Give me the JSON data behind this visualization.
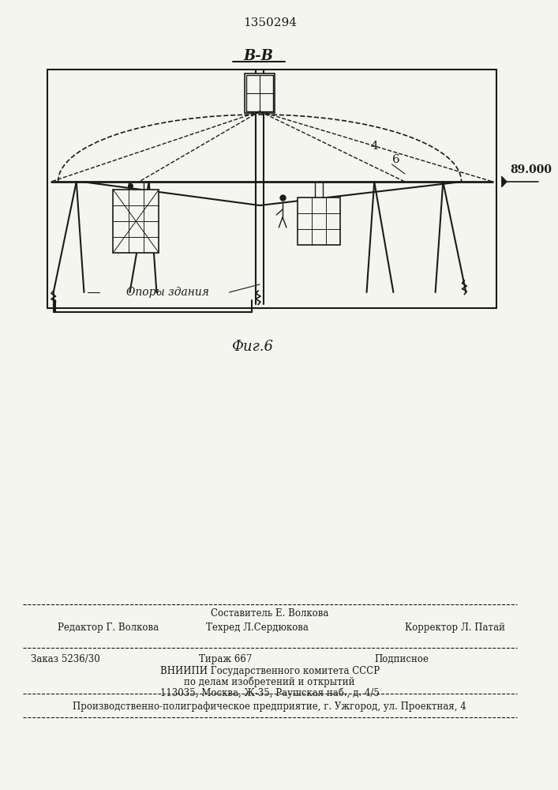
{
  "patent_number": "1350294",
  "section_label": "В-В",
  "fig_label": "Фиг.6",
  "elevation_label": "89.000",
  "label_4": "4",
  "label_6": "6",
  "supports_label": "Опоры здания",
  "footer_line1_left": "Редактор Г. Волкова",
  "footer_line1_center": "Составитель Е. Волкова\nТехред Л.Сердюкова",
  "footer_line1_right": "Корректор Л. Патай",
  "footer_line2": "Заказ 5236/30        Тираж 667                  Подписное",
  "footer_line3": "ВНИИПИ Государственного комитета СССР",
  "footer_line4": "по делам изобретений и открытий",
  "footer_line5": "113035, Москва, Ж-35, Раушская наб., д. 4/5",
  "footer_line6": "Производственно-полиграфическое предприятие, г. Ужгород, ул. Проектная, 4",
  "bg_color": "#f5f5f0",
  "line_color": "#1a1a1a"
}
